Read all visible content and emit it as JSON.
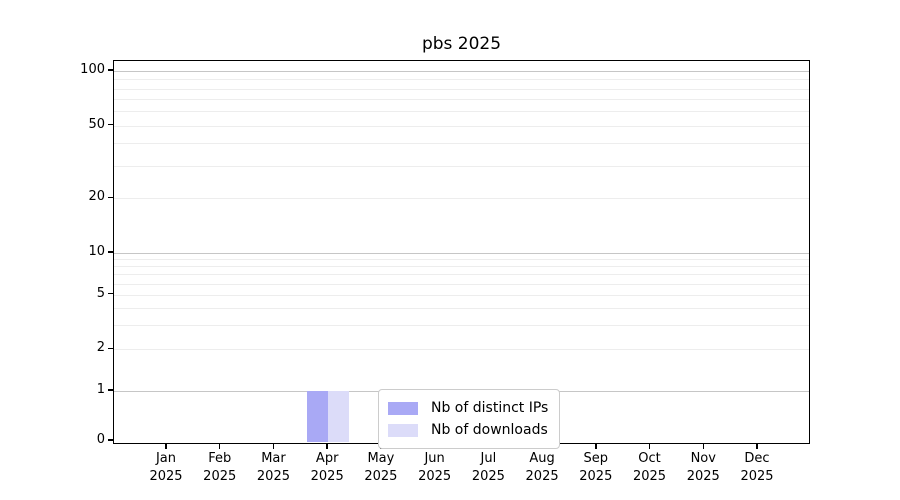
{
  "chart_data": {
    "type": "bar",
    "title": "pbs 2025",
    "categories": [
      "Jan 2025",
      "Feb 2025",
      "Mar 2025",
      "Apr 2025",
      "May 2025",
      "Jun 2025",
      "Jul 2025",
      "Aug 2025",
      "Sep 2025",
      "Oct 2025",
      "Nov 2025",
      "Dec 2025"
    ],
    "series": [
      {
        "name": "Nb of distinct IPs",
        "color": "#a9a9f5",
        "values": [
          0,
          0,
          0,
          1,
          0,
          0,
          0,
          0,
          0,
          0,
          0,
          0
        ]
      },
      {
        "name": "Nb of downloads",
        "color": "#dcdcf9",
        "values": [
          0,
          0,
          0,
          1,
          0,
          0,
          0,
          0,
          0,
          0,
          0,
          0
        ]
      }
    ],
    "y_axis": {
      "scale": "symlog",
      "labeled_ticks": [
        0,
        1,
        2,
        5,
        10,
        20,
        50,
        100
      ],
      "major_grid_values": [
        1,
        10,
        100
      ],
      "minor_grid_values": [
        2,
        3,
        4,
        5,
        6,
        7,
        8,
        9,
        20,
        30,
        40,
        50,
        60,
        70,
        80,
        90
      ],
      "range": [
        0,
        115
      ]
    },
    "xlabel": "",
    "ylabel": "",
    "grid": true,
    "legend": {
      "position": "lower center",
      "entries": [
        "Nb of distinct IPs",
        "Nb of downloads"
      ]
    },
    "background_color": "#ffffff"
  }
}
